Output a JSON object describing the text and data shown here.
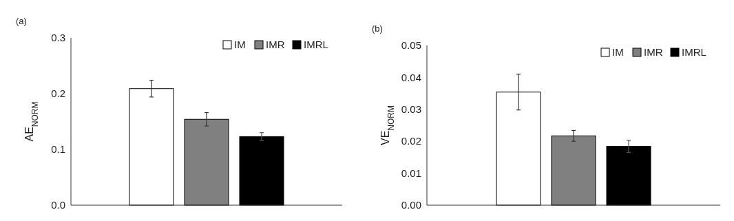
{
  "chart_data": [
    {
      "type": "bar",
      "title": "(a)",
      "ylabel": "AE$_{NORM}$",
      "categories": [
        null
      ],
      "series": [
        {
          "name": "IM",
          "color": "#ffffff",
          "values": [
            0.209
          ],
          "errors": [
            0.015
          ]
        },
        {
          "name": "IMR",
          "color": "#808080",
          "values": [
            0.154
          ],
          "errors": [
            0.012
          ]
        },
        {
          "name": "IMRL",
          "color": "#000000",
          "values": [
            0.123
          ],
          "errors": [
            0.007
          ]
        }
      ],
      "ylim": [
        0,
        0.3
      ],
      "yticks": [
        {
          "value": 0,
          "label": "0.0"
        },
        {
          "value": 0.1,
          "label": "0.1"
        },
        {
          "value": 0.2,
          "label": "0.2"
        },
        {
          "value": 0.3,
          "label": "0.3"
        }
      ],
      "legend": "top right",
      "grid": false
    },
    {
      "type": "bar",
      "title": "(b)",
      "ylabel": "VE$_{NORM}$",
      "categories": [
        null
      ],
      "series": [
        {
          "name": "IM",
          "color": "#ffffff",
          "values": [
            0.0354
          ],
          "errors": [
            0.0056
          ]
        },
        {
          "name": "IMR",
          "color": "#808080",
          "values": [
            0.0217
          ],
          "errors": [
            0.0017
          ]
        },
        {
          "name": "IMRL",
          "color": "#000000",
          "values": [
            0.0184
          ],
          "errors": [
            0.0019
          ]
        }
      ],
      "ylim": [
        0,
        0.05
      ],
      "yticks": [
        {
          "value": 0,
          "label": "0.00"
        },
        {
          "value": 0.01,
          "label": "0.01"
        },
        {
          "value": 0.02,
          "label": "0.02"
        },
        {
          "value": 0.03,
          "label": "0.03"
        },
        {
          "value": 0.04,
          "label": "0.04"
        },
        {
          "value": 0.05,
          "label": "0.05"
        }
      ],
      "legend": "top right",
      "grid": false
    }
  ]
}
